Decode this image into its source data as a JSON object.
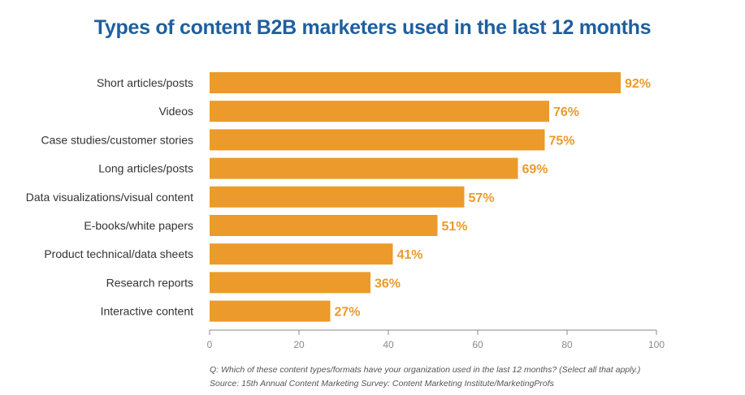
{
  "colors": {
    "title": "#1f5f9e",
    "bar": "#ec9a2b",
    "value_label": "#ec9a2b",
    "axis": "#8a8a8a"
  },
  "chart_data": {
    "type": "bar",
    "orientation": "horizontal",
    "title": "Types of content B2B marketers used in the last 12 months",
    "categories": [
      "Short articles/posts",
      "Videos",
      "Case studies/customer stories",
      "Long articles/posts",
      "Data visualizations/visual content",
      "E-books/white papers",
      "Product technical/data sheets",
      "Research reports",
      "Interactive content"
    ],
    "values": [
      92,
      76,
      75,
      69,
      57,
      51,
      41,
      36,
      27
    ],
    "value_labels": [
      "92%",
      "76%",
      "75%",
      "69%",
      "57%",
      "51%",
      "41%",
      "36%",
      "27%"
    ],
    "xlim": [
      0,
      100
    ],
    "xticks": [
      0,
      20,
      40,
      60,
      80,
      100
    ],
    "xtick_labels": [
      "0",
      "20",
      "40",
      "60",
      "80",
      "100"
    ],
    "xlabel": "",
    "ylabel": ""
  },
  "footnotes": {
    "question": "Q: Which of these content types/formats have your organization used in the last 12 months? (Select all that apply.)",
    "source": "Source: 15th Annual Content Marketing Survey: Content Marketing Institute/MarketingProfs"
  }
}
